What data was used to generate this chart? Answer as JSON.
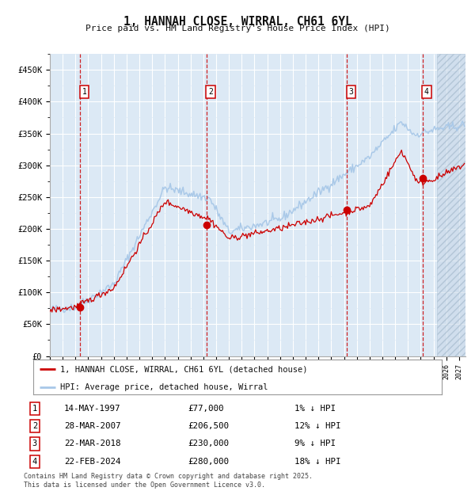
{
  "title": "1, HANNAH CLOSE, WIRRAL, CH61 6YL",
  "subtitle": "Price paid vs. HM Land Registry's House Price Index (HPI)",
  "bg_color": "#dce9f5",
  "fig_bg_color": "#ffffff",
  "hpi_line_color": "#a8c8e8",
  "price_line_color": "#cc0000",
  "marker_color": "#cc0000",
  "dashed_line_color": "#cc0000",
  "ylim": [
    0,
    475000
  ],
  "yticks": [
    0,
    50000,
    100000,
    150000,
    200000,
    250000,
    300000,
    350000,
    400000,
    450000
  ],
  "ytick_labels": [
    "£0",
    "£50K",
    "£100K",
    "£150K",
    "£200K",
    "£250K",
    "£300K",
    "£350K",
    "£400K",
    "£450K"
  ],
  "xlim_start": 1995.0,
  "xlim_end": 2027.5,
  "sale_years": [
    1997.37,
    2007.24,
    2018.22,
    2024.13
  ],
  "sale_prices": [
    77000,
    206500,
    230000,
    280000
  ],
  "sale_labels": [
    "1",
    "2",
    "3",
    "4"
  ],
  "sale_dates": [
    "14-MAY-1997",
    "28-MAR-2007",
    "22-MAR-2018",
    "22-FEB-2024"
  ],
  "sale_price_labels": [
    "£77,000",
    "£206,500",
    "£230,000",
    "£280,000"
  ],
  "sale_hpi_pct": [
    "1% ↓ HPI",
    "12% ↓ HPI",
    "9% ↓ HPI",
    "18% ↓ HPI"
  ],
  "legend_entries": [
    "1, HANNAH CLOSE, WIRRAL, CH61 6YL (detached house)",
    "HPI: Average price, detached house, Wirral"
  ],
  "footer_text": "Contains HM Land Registry data © Crown copyright and database right 2025.\nThis data is licensed under the Open Government Licence v3.0.",
  "hatch_start": 2025.3
}
